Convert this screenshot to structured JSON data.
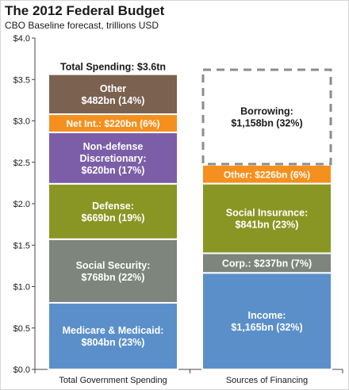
{
  "header": {
    "title": "The 2012 Federal Budget",
    "subtitle": "CBO Baseline forecast, trillions USD"
  },
  "chart_data": {
    "type": "bar",
    "stacked": true,
    "ylim": [
      0,
      4.0
    ],
    "yticks": [
      "$0.0",
      "$0.5",
      "$1.0",
      "$1.5",
      "$2.0",
      "$2.5",
      "$3.0",
      "$3.5",
      "$4.0"
    ],
    "grid": false,
    "categories": [
      "Total Government Spending",
      "Sources of Financing"
    ],
    "total_label": "Total Spending: $3.6tn",
    "bars": [
      {
        "category": "Total Government Spending",
        "segments": [
          {
            "lines": [
              "Medicare & Medicaid:",
              "$804bn (23%)"
            ],
            "value": 0.804,
            "color": "#5b8fc9"
          },
          {
            "lines": [
              "Social Security:",
              "$768bn (22%)"
            ],
            "value": 0.768,
            "color": "#7d857d"
          },
          {
            "lines": [
              "Defense:",
              "$669bn (19%)"
            ],
            "value": 0.669,
            "color": "#8a9623"
          },
          {
            "lines": [
              "Non-defense",
              "Discretionary:",
              "$620bn (17%)"
            ],
            "value": 0.62,
            "color": "#7b5ea7"
          },
          {
            "lines": [
              "Net Int.: $220bn (6%)"
            ],
            "value": 0.22,
            "color": "#f5901e"
          },
          {
            "lines": [
              "Other",
              "$482bn (14%)"
            ],
            "value": 0.482,
            "color": "#7a6150"
          }
        ]
      },
      {
        "category": "Sources of Financing",
        "segments": [
          {
            "lines": [
              "Income:",
              "$1,165bn (32%)"
            ],
            "value": 1.165,
            "color": "#5b8fc9"
          },
          {
            "lines": [
              "Corp.: $237bn (7%)"
            ],
            "value": 0.237,
            "color": "#7d857d"
          },
          {
            "lines": [
              "Social Insurance:",
              "$841bn (23%)"
            ],
            "value": 0.841,
            "color": "#8a9623"
          },
          {
            "lines": [
              "Other: $226bn (6%)"
            ],
            "value": 0.226,
            "color": "#f5901e"
          },
          {
            "lines": [
              "Borrowing:",
              "$1,158bn (32%)"
            ],
            "value": 1.158,
            "color": "none",
            "dashed": true
          }
        ]
      }
    ]
  }
}
